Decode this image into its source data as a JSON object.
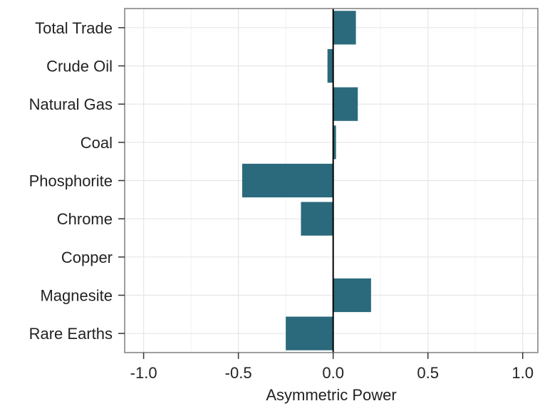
{
  "chart_data": {
    "type": "bar",
    "orientation": "horizontal",
    "categories": [
      "Total Trade",
      "Crude Oil",
      "Natural Gas",
      "Coal",
      "Phosphorite",
      "Chrome",
      "Copper",
      "Magnesite",
      "Rare Earths"
    ],
    "values": [
      0.12,
      -0.03,
      0.13,
      0.015,
      -0.48,
      -0.17,
      0.003,
      0.2,
      -0.25
    ],
    "xlabel": "Asymmetric Power",
    "ylabel": "",
    "xlim": [
      -1.1,
      1.08
    ],
    "xticks": [
      -1.0,
      -0.5,
      0.0,
      0.5,
      1.0
    ],
    "xtick_labels": [
      "-1.0",
      "-0.5",
      "0.0",
      "0.5",
      "1.0"
    ],
    "grid": true,
    "zero_line": true,
    "bar_color": "#2b6a7c"
  }
}
